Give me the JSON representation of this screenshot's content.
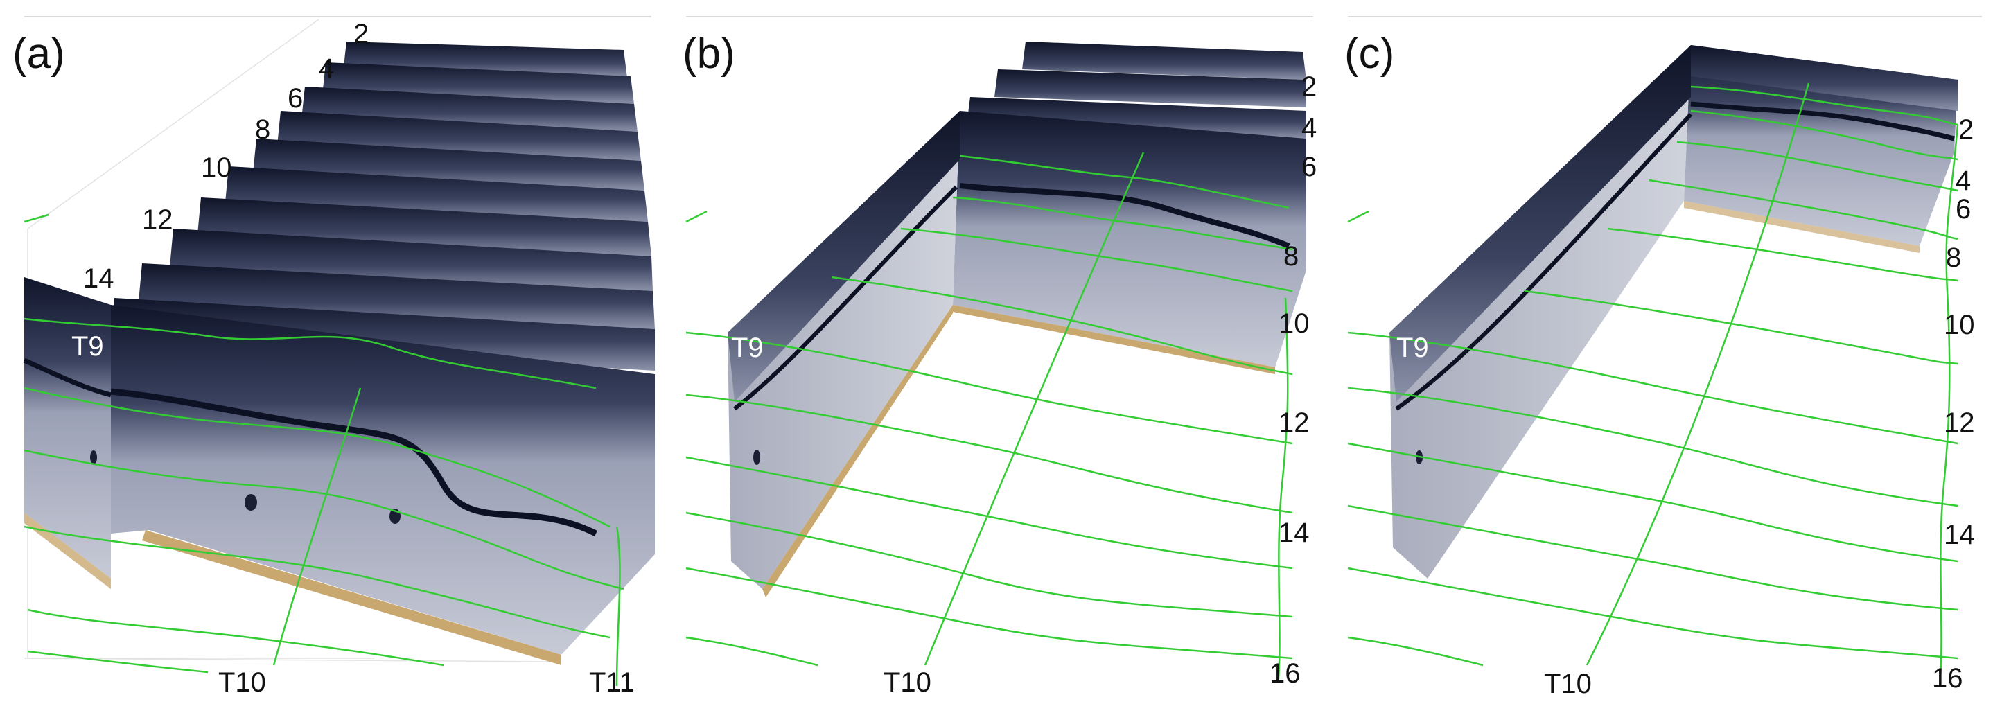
{
  "figure": {
    "panels": [
      {
        "label": "(a)",
        "numbers": [
          "2",
          "4",
          "6",
          "8",
          "10",
          "12",
          "14"
        ],
        "transects": [
          "T9",
          "T10",
          "T11"
        ]
      },
      {
        "label": "(b)",
        "numbers": [
          "2",
          "4",
          "6",
          "8",
          "10",
          "12",
          "14",
          "16"
        ],
        "transects": [
          "T9",
          "T10"
        ]
      },
      {
        "label": "(c)",
        "numbers": [
          "2",
          "4",
          "6",
          "8",
          "10",
          "12",
          "14",
          "16"
        ],
        "transects": [
          "T9",
          "T10"
        ]
      }
    ]
  },
  "colors": {
    "profile_line": "#33cc33",
    "radargram_dark": "#141a2e",
    "radargram_light": "#b8bccb",
    "base_sand": "#c9a870",
    "grid": "#d9d9d9"
  }
}
